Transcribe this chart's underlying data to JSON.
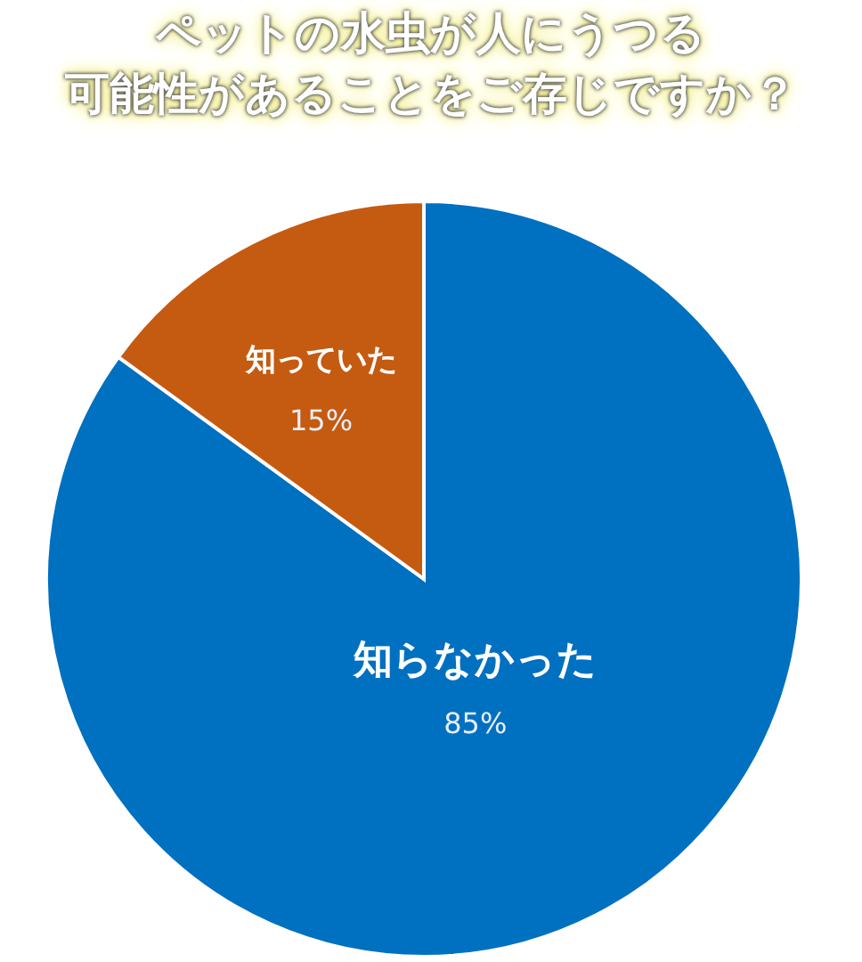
{
  "chart_data": {
    "type": "pie",
    "title": "ペットの水虫が人にうつる",
    "subtitle": "可能性があることをご存じですか？",
    "categories": [
      "知らなかった",
      "知っていた"
    ],
    "values": [
      85,
      15
    ],
    "value_labels": [
      "85%",
      "15%"
    ],
    "colors": [
      "#0070c0",
      "#c55a11"
    ]
  }
}
